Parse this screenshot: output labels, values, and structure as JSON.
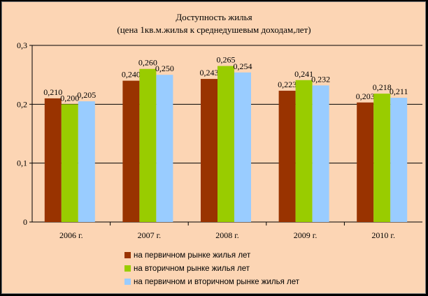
{
  "chart_data": {
    "type": "bar",
    "title": "Доступность жилья",
    "subtitle": "(цена 1кв.м.жилья к среднедушевым доходам,лет)",
    "categories": [
      "2006 г.",
      "2007 г.",
      "2008 г.",
      "2009 г.",
      "2010 г."
    ],
    "series": [
      {
        "name": "на  первичном рынке жилья лет",
        "color": "#993300",
        "values": [
          0.21,
          0.24,
          0.243,
          0.223,
          0.203
        ],
        "labels": [
          "0,210",
          "0,240",
          "0,243",
          "0,223",
          "0,203"
        ]
      },
      {
        "name": "на  вторичном рынке жилья лет",
        "color": "#99cc00",
        "values": [
          0.2,
          0.26,
          0.265,
          0.241,
          0.218
        ],
        "labels": [
          "0,200",
          "0,260",
          "0,265",
          "0,241",
          "0,218"
        ]
      },
      {
        "name": "на  первичном и вторичном рынке жилья лет",
        "color": "#99ccff",
        "values": [
          0.205,
          0.25,
          0.254,
          0.232,
          0.211
        ],
        "labels": [
          "0,205",
          "0,250",
          "0,254",
          "0,232",
          "0,211"
        ]
      }
    ],
    "ylim": [
      0,
      0.3
    ],
    "yticks": [
      0,
      0.1,
      0.2,
      0.3
    ],
    "ytick_labels": [
      "0",
      "0,1",
      "0,2",
      "0,3"
    ],
    "grid": true,
    "legend_position": "bottom"
  }
}
